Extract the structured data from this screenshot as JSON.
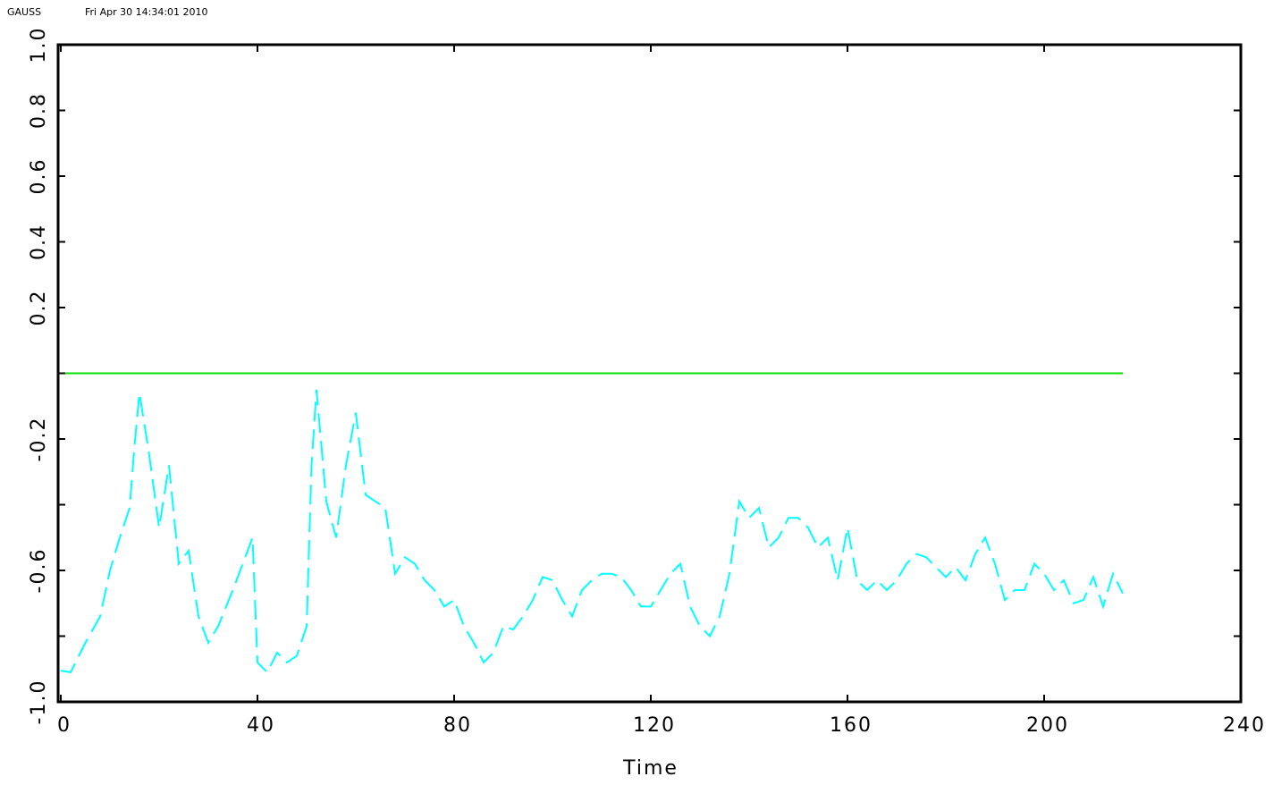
{
  "chart_data": {
    "type": "line",
    "header": "GAUSS",
    "timestamp": "Fri Apr 30 14:34:01 2010",
    "xlabel": "Time",
    "xlim": [
      0,
      240
    ],
    "xticks": [
      0,
      40,
      80,
      120,
      160,
      200,
      240
    ],
    "ylim": [
      -1,
      1
    ],
    "yticks": [
      {
        "value": -1,
        "label": "-1.0"
      },
      {
        "value": -0.8,
        "label": null
      },
      {
        "value": -0.6,
        "label": "-0.6"
      },
      {
        "value": -0.4,
        "label": null
      },
      {
        "value": -0.2,
        "label": "-0.2"
      },
      {
        "value": 0,
        "label": null
      },
      {
        "value": 0.2,
        "label": "0.2"
      },
      {
        "value": 0.4,
        "label": "0.4"
      },
      {
        "value": 0.6,
        "label": "0.6"
      },
      {
        "value": 0.8,
        "label": "0.8"
      },
      {
        "value": 1,
        "label": "1.0"
      }
    ],
    "series": [
      {
        "color": "#00ffff",
        "dashed": true,
        "x": [
          0,
          2,
          5,
          8,
          10,
          12,
          14,
          15,
          16,
          18,
          20,
          22,
          24,
          26,
          28,
          30,
          32,
          35,
          37,
          39,
          40,
          42,
          44,
          46,
          48,
          50,
          51,
          52,
          54,
          56,
          58,
          60,
          62,
          64,
          66,
          68,
          70,
          72,
          74,
          76,
          78,
          80,
          82,
          84,
          86,
          88,
          90,
          92,
          94,
          96,
          98,
          100,
          102,
          104,
          106,
          108,
          110,
          112,
          114,
          116,
          118,
          120,
          122,
          124,
          126,
          128,
          130,
          132,
          134,
          136,
          138,
          140,
          142,
          144,
          146,
          148,
          150,
          152,
          154,
          156,
          158,
          160,
          162,
          164,
          166,
          168,
          170,
          172,
          174,
          176,
          178,
          180,
          182,
          184,
          186,
          188,
          190,
          192,
          194,
          196,
          198,
          200,
          202,
          204,
          206,
          208,
          210,
          212,
          214,
          216
        ],
        "values": [
          -0.905,
          -0.91,
          -0.82,
          -0.74,
          -0.6,
          -0.5,
          -0.41,
          -0.22,
          -0.06,
          -0.25,
          -0.47,
          -0.28,
          -0.58,
          -0.54,
          -0.74,
          -0.82,
          -0.77,
          -0.66,
          -0.58,
          -0.5,
          -0.88,
          -0.91,
          -0.85,
          -0.88,
          -0.86,
          -0.77,
          -0.28,
          -0.05,
          -0.39,
          -0.5,
          -0.28,
          -0.12,
          -0.37,
          -0.39,
          -0.41,
          -0.61,
          -0.56,
          -0.58,
          -0.63,
          -0.66,
          -0.71,
          -0.69,
          -0.77,
          -0.82,
          -0.88,
          -0.85,
          -0.77,
          -0.78,
          -0.74,
          -0.69,
          -0.62,
          -0.63,
          -0.69,
          -0.74,
          -0.66,
          -0.63,
          -0.61,
          -0.61,
          -0.62,
          -0.66,
          -0.71,
          -0.71,
          -0.66,
          -0.61,
          -0.58,
          -0.71,
          -0.77,
          -0.8,
          -0.74,
          -0.61,
          -0.39,
          -0.44,
          -0.41,
          -0.53,
          -0.5,
          -0.44,
          -0.44,
          -0.47,
          -0.53,
          -0.5,
          -0.63,
          -0.47,
          -0.63,
          -0.66,
          -0.63,
          -0.66,
          -0.63,
          -0.58,
          -0.55,
          -0.56,
          -0.59,
          -0.62,
          -0.59,
          -0.63,
          -0.55,
          -0.5,
          -0.58,
          -0.69,
          -0.66,
          -0.66,
          -0.58,
          -0.61,
          -0.66,
          -0.63,
          -0.7,
          -0.69,
          -0.62,
          -0.71,
          -0.61,
          -0.67
        ]
      },
      {
        "color": "#00e000",
        "dashed": false,
        "x": [
          0,
          216
        ],
        "values": [
          0,
          0
        ]
      }
    ]
  }
}
